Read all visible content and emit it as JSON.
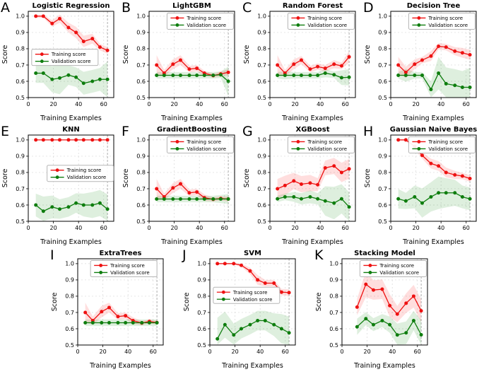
{
  "figure": {
    "xlabel": "Training Examples",
    "ylabel": "Score",
    "legend": {
      "train_label": "Training score",
      "val_label": "Validation score"
    },
    "colors": {
      "train": "#ee1111",
      "val": "#0e7d0e",
      "train_band": "rgba(255,0,0,0.13)",
      "val_band": "rgba(0,128,0,0.13)",
      "vline": "#999999",
      "grid": "#d8d8d8"
    }
  },
  "axes": {
    "xlim": [
      0,
      68
    ],
    "ylim": [
      0.5,
      1.03
    ],
    "xticks": [
      0,
      20,
      40,
      60
    ],
    "xticklabels": [
      "0",
      "20",
      "40",
      "60"
    ],
    "yticks": [
      0.5,
      0.6,
      0.7,
      0.8,
      0.9,
      1.0
    ],
    "yticklabels": [
      "0.5",
      "0.6",
      "0.7",
      "0.8",
      "0.9",
      "1.0"
    ],
    "vline_x": 63,
    "grid": true
  },
  "chart_data": [
    {
      "type": "line",
      "letter": "A",
      "title": "Logistic Regression",
      "row": 1,
      "legend_pos": {
        "x": 0.04,
        "y": 0.44
      },
      "x": [
        6,
        12,
        19,
        25,
        32,
        38,
        44,
        51,
        57,
        63
      ],
      "train": [
        1.0,
        1.0,
        0.955,
        0.985,
        0.93,
        0.9,
        0.845,
        0.862,
        0.81,
        0.79
      ],
      "train_err": [
        0.01,
        0.01,
        0.02,
        0.025,
        0.03,
        0.035,
        0.035,
        0.03,
        0.02,
        0.02
      ],
      "val": [
        0.65,
        0.65,
        0.612,
        0.62,
        0.638,
        0.625,
        0.588,
        0.6,
        0.612,
        0.612
      ],
      "val_err": [
        0.06,
        0.06,
        0.08,
        0.1,
        0.06,
        0.06,
        0.07,
        0.07,
        0.07,
        0.11
      ]
    },
    {
      "type": "line",
      "letter": "B",
      "title": "LightGBM",
      "row": 1,
      "legend_pos": {
        "x": 0.21,
        "y": 0.02
      },
      "x": [
        6,
        12,
        19,
        25,
        32,
        38,
        44,
        51,
        57,
        63
      ],
      "train": [
        0.7,
        0.65,
        0.705,
        0.73,
        0.675,
        0.68,
        0.65,
        0.635,
        0.645,
        0.655
      ],
      "train_err": [
        0.06,
        0.02,
        0.03,
        0.03,
        0.02,
        0.02,
        0.015,
        0.012,
        0.015,
        0.02
      ],
      "val": [
        0.637,
        0.637,
        0.637,
        0.637,
        0.637,
        0.637,
        0.637,
        0.637,
        0.64,
        0.6
      ],
      "val_err": [
        0.02,
        0.02,
        0.02,
        0.02,
        0.02,
        0.02,
        0.02,
        0.02,
        0.02,
        0.09
      ]
    },
    {
      "type": "line",
      "letter": "C",
      "title": "Random Forest",
      "row": 1,
      "legend_pos": {
        "x": 0.21,
        "y": 0.02
      },
      "x": [
        6,
        12,
        19,
        25,
        32,
        38,
        44,
        51,
        57,
        63
      ],
      "train": [
        0.7,
        0.65,
        0.705,
        0.73,
        0.675,
        0.69,
        0.68,
        0.705,
        0.695,
        0.75
      ],
      "train_err": [
        0.06,
        0.02,
        0.03,
        0.025,
        0.02,
        0.02,
        0.02,
        0.025,
        0.02,
        0.035
      ],
      "val": [
        0.637,
        0.637,
        0.637,
        0.637,
        0.637,
        0.637,
        0.65,
        0.64,
        0.622,
        0.625
      ],
      "val_err": [
        0.02,
        0.025,
        0.02,
        0.02,
        0.02,
        0.02,
        0.025,
        0.02,
        0.045,
        0.05
      ]
    },
    {
      "type": "line",
      "letter": "D",
      "title": "Decision Tree",
      "row": 1,
      "legend_pos": {
        "x": 0.21,
        "y": 0.02
      },
      "x": [
        6,
        12,
        19,
        25,
        32,
        38,
        44,
        51,
        57,
        63
      ],
      "train": [
        0.7,
        0.655,
        0.705,
        0.73,
        0.755,
        0.815,
        0.81,
        0.785,
        0.775,
        0.763
      ],
      "train_err": [
        0.05,
        0.035,
        0.03,
        0.02,
        0.03,
        0.02,
        0.02,
        0.025,
        0.03,
        0.03
      ],
      "val": [
        0.637,
        0.637,
        0.637,
        0.637,
        0.55,
        0.65,
        0.585,
        0.575,
        0.563,
        0.563
      ],
      "val_err": [
        0.02,
        0.04,
        0.02,
        0.02,
        0.05,
        0.1,
        0.1,
        0.1,
        0.1,
        0.12
      ]
    },
    {
      "type": "line",
      "letter": "E",
      "title": "KNN",
      "row": 2,
      "legend_pos": {
        "x": 0.22,
        "y": 0.35
      },
      "x": [
        6,
        12,
        19,
        25,
        32,
        38,
        44,
        51,
        57,
        63
      ],
      "train": [
        1.0,
        1.0,
        1.0,
        1.0,
        1.0,
        1.0,
        1.0,
        1.0,
        1.0,
        1.0
      ],
      "train_err": [
        0,
        0,
        0,
        0,
        0,
        0,
        0,
        0,
        0,
        0
      ],
      "val": [
        0.6,
        0.562,
        0.588,
        0.575,
        0.588,
        0.612,
        0.6,
        0.6,
        0.612,
        0.575
      ],
      "val_err": [
        0.07,
        0.09,
        0.07,
        0.06,
        0.06,
        0.06,
        0.07,
        0.08,
        0.08,
        0.09
      ]
    },
    {
      "type": "line",
      "letter": "F",
      "title": "GradientBoosting",
      "row": 2,
      "legend_pos": {
        "x": 0.21,
        "y": 0.02
      },
      "x": [
        6,
        12,
        19,
        25,
        32,
        38,
        44,
        51,
        57,
        63
      ],
      "train": [
        0.7,
        0.65,
        0.705,
        0.73,
        0.675,
        0.68,
        0.645,
        0.635,
        0.64,
        0.637
      ],
      "train_err": [
        0.06,
        0.02,
        0.03,
        0.03,
        0.02,
        0.02,
        0.02,
        0.012,
        0.012,
        0.015
      ],
      "val": [
        0.637,
        0.637,
        0.637,
        0.637,
        0.637,
        0.637,
        0.637,
        0.637,
        0.637,
        0.637
      ],
      "val_err": [
        0.02,
        0.02,
        0.02,
        0.02,
        0.02,
        0.02,
        0.02,
        0.02,
        0.025,
        0.03
      ]
    },
    {
      "type": "line",
      "letter": "G",
      "title": "XGBoost",
      "row": 2,
      "legend_pos": {
        "x": 0.21,
        "y": 0.02
      },
      "x": [
        6,
        12,
        19,
        25,
        32,
        38,
        44,
        51,
        57,
        63
      ],
      "train": [
        0.7,
        0.72,
        0.748,
        0.728,
        0.735,
        0.725,
        0.828,
        0.84,
        0.8,
        0.822
      ],
      "train_err": [
        0.06,
        0.06,
        0.05,
        0.05,
        0.05,
        0.04,
        0.045,
        0.05,
        0.06,
        0.06
      ],
      "val": [
        0.638,
        0.65,
        0.65,
        0.638,
        0.65,
        0.638,
        0.625,
        0.612,
        0.638,
        0.588
      ],
      "val_err": [
        0.02,
        0.02,
        0.03,
        0.035,
        0.04,
        0.035,
        0.09,
        0.1,
        0.09,
        0.09
      ]
    },
    {
      "type": "line",
      "letter": "H",
      "title": "Gaussian Naive Bayes",
      "row": 2,
      "legend_pos": {
        "x": 0.21,
        "y": 0.02
      },
      "x": [
        6,
        12,
        19,
        25,
        32,
        38,
        44,
        51,
        57,
        63
      ],
      "train": [
        1.0,
        1.0,
        0.96,
        0.905,
        0.855,
        0.84,
        0.8,
        0.785,
        0.778,
        0.763
      ],
      "train_err": [
        0.005,
        0.005,
        0.02,
        0.02,
        0.03,
        0.03,
        0.03,
        0.025,
        0.02,
        0.02
      ],
      "val": [
        0.638,
        0.625,
        0.65,
        0.612,
        0.65,
        0.675,
        0.675,
        0.675,
        0.65,
        0.638
      ],
      "val_err": [
        0.06,
        0.05,
        0.07,
        0.09,
        0.09,
        0.1,
        0.09,
        0.08,
        0.07,
        0.07
      ]
    },
    {
      "type": "line",
      "letter": "I",
      "title": "ExtraTrees",
      "row": 3,
      "legend_pos": {
        "x": 0.15,
        "y": 0.02
      },
      "x": [
        6,
        12,
        19,
        25,
        32,
        38,
        44,
        51,
        57,
        63
      ],
      "train": [
        0.7,
        0.65,
        0.705,
        0.73,
        0.675,
        0.68,
        0.65,
        0.635,
        0.645,
        0.638
      ],
      "train_err": [
        0.06,
        0.025,
        0.035,
        0.03,
        0.02,
        0.02,
        0.02,
        0.012,
        0.012,
        0.012
      ],
      "val": [
        0.637,
        0.637,
        0.637,
        0.637,
        0.637,
        0.637,
        0.637,
        0.637,
        0.637,
        0.637
      ],
      "val_err": [
        0.02,
        0.02,
        0.02,
        0.02,
        0.02,
        0.02,
        0.02,
        0.02,
        0.02,
        0.02
      ]
    },
    {
      "type": "line",
      "letter": "J",
      "title": "SVM",
      "row": 3,
      "legend_pos": {
        "x": 0.04,
        "y": 0.33
      },
      "x": [
        6,
        12,
        19,
        25,
        32,
        38,
        44,
        51,
        57,
        63
      ],
      "train": [
        1.0,
        1.0,
        1.0,
        0.99,
        0.955,
        0.9,
        0.88,
        0.88,
        0.825,
        0.822
      ],
      "train_err": [
        0.004,
        0.004,
        0.004,
        0.01,
        0.02,
        0.03,
        0.02,
        0.02,
        0.02,
        0.02
      ],
      "val": [
        0.538,
        0.625,
        0.562,
        0.6,
        0.625,
        0.65,
        0.65,
        0.625,
        0.6,
        0.575
      ],
      "val_err": [
        0.13,
        0.08,
        0.07,
        0.06,
        0.06,
        0.06,
        0.06,
        0.07,
        0.09,
        0.1
      ]
    },
    {
      "type": "line",
      "letter": "K",
      "title": "Stacking Model",
      "row": 3,
      "legend_pos": {
        "x": 0.21,
        "y": 0.02
      },
      "x": [
        12,
        19,
        25,
        32,
        38,
        44,
        51,
        57,
        63
      ],
      "train": [
        0.733,
        0.873,
        0.838,
        0.843,
        0.742,
        0.69,
        0.757,
        0.8,
        0.71
      ],
      "train_err": [
        0.05,
        0.08,
        0.06,
        0.06,
        0.07,
        0.05,
        0.06,
        0.07,
        0.07
      ],
      "val": [
        0.612,
        0.662,
        0.625,
        0.65,
        0.625,
        0.562,
        0.575,
        0.65,
        0.563
      ],
      "val_err": [
        0.05,
        0.04,
        0.04,
        0.04,
        0.05,
        0.07,
        0.07,
        0.06,
        0.09
      ]
    }
  ]
}
